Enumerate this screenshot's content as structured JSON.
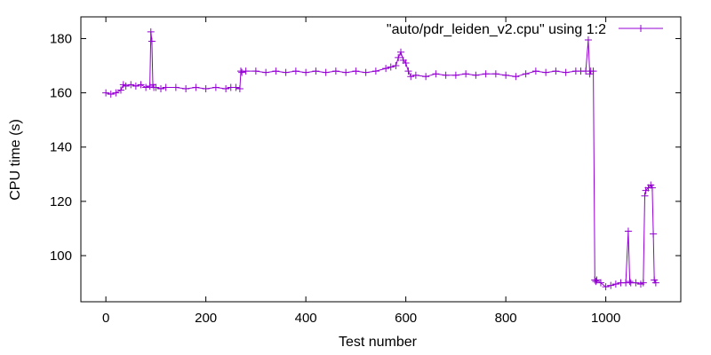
{
  "chart_data": {
    "type": "line",
    "title": "",
    "xlabel": "Test number",
    "ylabel": "CPU time (s)",
    "xlim": [
      -50,
      1150
    ],
    "ylim": [
      83,
      188
    ],
    "xticks": [
      0,
      200,
      400,
      600,
      800,
      1000
    ],
    "yticks": [
      100,
      120,
      140,
      160,
      180
    ],
    "grid": false,
    "legend_position": "top-right",
    "marker": "plus",
    "series": [
      {
        "name": "\"auto/pdr_leiden_v2.cpu\" using 1:2",
        "color": "#9400d3",
        "x": [
          0,
          10,
          20,
          30,
          35,
          40,
          50,
          60,
          70,
          80,
          88,
          90,
          92,
          94,
          96,
          100,
          110,
          120,
          140,
          160,
          180,
          200,
          220,
          240,
          250,
          260,
          268,
          270,
          272,
          280,
          300,
          320,
          340,
          360,
          380,
          400,
          420,
          440,
          460,
          480,
          500,
          520,
          540,
          560,
          570,
          580,
          585,
          590,
          595,
          600,
          605,
          610,
          620,
          640,
          660,
          680,
          700,
          720,
          740,
          760,
          780,
          800,
          820,
          840,
          860,
          880,
          900,
          920,
          940,
          950,
          960,
          965,
          968,
          970,
          975,
          978,
          980,
          982,
          990,
          1000,
          1010,
          1020,
          1030,
          1040,
          1045,
          1048,
          1050,
          1060,
          1070,
          1075,
          1078,
          1080,
          1085,
          1090,
          1093,
          1095,
          1097,
          1100
        ],
        "y": [
          160,
          159.5,
          160,
          161,
          163,
          162.5,
          163,
          162.5,
          163,
          162,
          162.5,
          182.5,
          179,
          163,
          162,
          162,
          161.5,
          162,
          162,
          161.5,
          162,
          161.5,
          162,
          161.5,
          162,
          162,
          161.5,
          168,
          167.5,
          168,
          168,
          167.5,
          168,
          167.5,
          168,
          167.5,
          168,
          167.5,
          168,
          167.5,
          168,
          167.5,
          168,
          169,
          169.5,
          170,
          173,
          175,
          172,
          171,
          168,
          166,
          166.5,
          166,
          167,
          166.5,
          166.5,
          167,
          166.5,
          167,
          167,
          166.5,
          166,
          167,
          168,
          167.5,
          168,
          167.5,
          168,
          168,
          168,
          179.5,
          167,
          168,
          168,
          91,
          90.5,
          91,
          90,
          88.5,
          89,
          89.5,
          90,
          90,
          109,
          90.5,
          90,
          90,
          89.5,
          90,
          122,
          124,
          125,
          126,
          125,
          108,
          91,
          90
        ]
      }
    ]
  }
}
